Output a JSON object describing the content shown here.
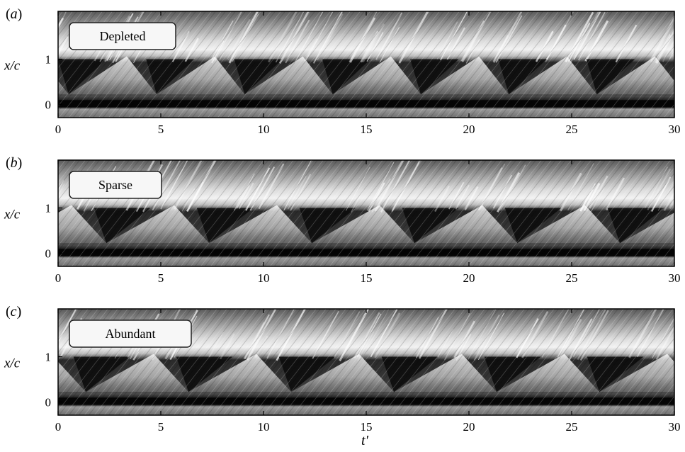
{
  "x_axis_title": "t′",
  "y_axis_title": "x/c",
  "x_ticks": [
    "0",
    "5",
    "10",
    "15",
    "20",
    "25",
    "30"
  ],
  "y_ticks": [
    "0",
    "1"
  ],
  "panels": [
    {
      "letter": "a",
      "condition": "Depleted",
      "shedding_cycles": 7,
      "phase_offset": 0.0
    },
    {
      "letter": "b",
      "condition": "Sparse",
      "shedding_cycles": 6,
      "phase_offset": 0.35
    },
    {
      "letter": "c",
      "condition": "Abundant",
      "shedding_cycles": 6,
      "phase_offset": 0.15
    }
  ]
}
